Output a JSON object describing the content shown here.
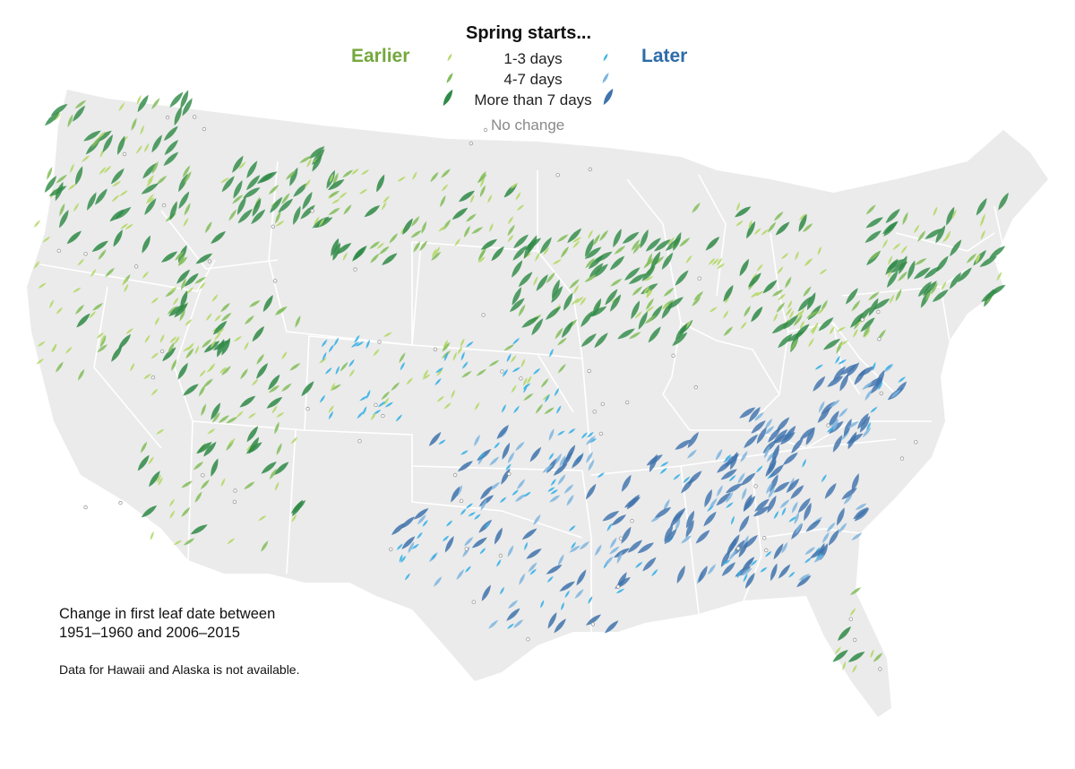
{
  "legend": {
    "title": "Spring starts...",
    "earlier_label": "Earlier",
    "later_label": "Later",
    "rows": [
      {
        "label": "1-3 days"
      },
      {
        "label": "4-7 days"
      },
      {
        "label": "More than 7 days"
      }
    ],
    "no_change_label": "No change"
  },
  "note": {
    "line1": "Change in first leaf date between",
    "line2": "1951–1960 and 2006–2015",
    "availability": "Data for Hawaii and Alaska is not available."
  },
  "colors": {
    "land": "#ebebeb",
    "state_border": "#ffffff",
    "earlier_small": "#b5d869",
    "earlier_medium": "#82bd5a",
    "earlier_large": "#2f8a47",
    "later_small": "#3bb1e5",
    "later_medium": "#7fb5de",
    "later_large": "#3f73ac",
    "no_change": "#9a9a9a"
  }
}
